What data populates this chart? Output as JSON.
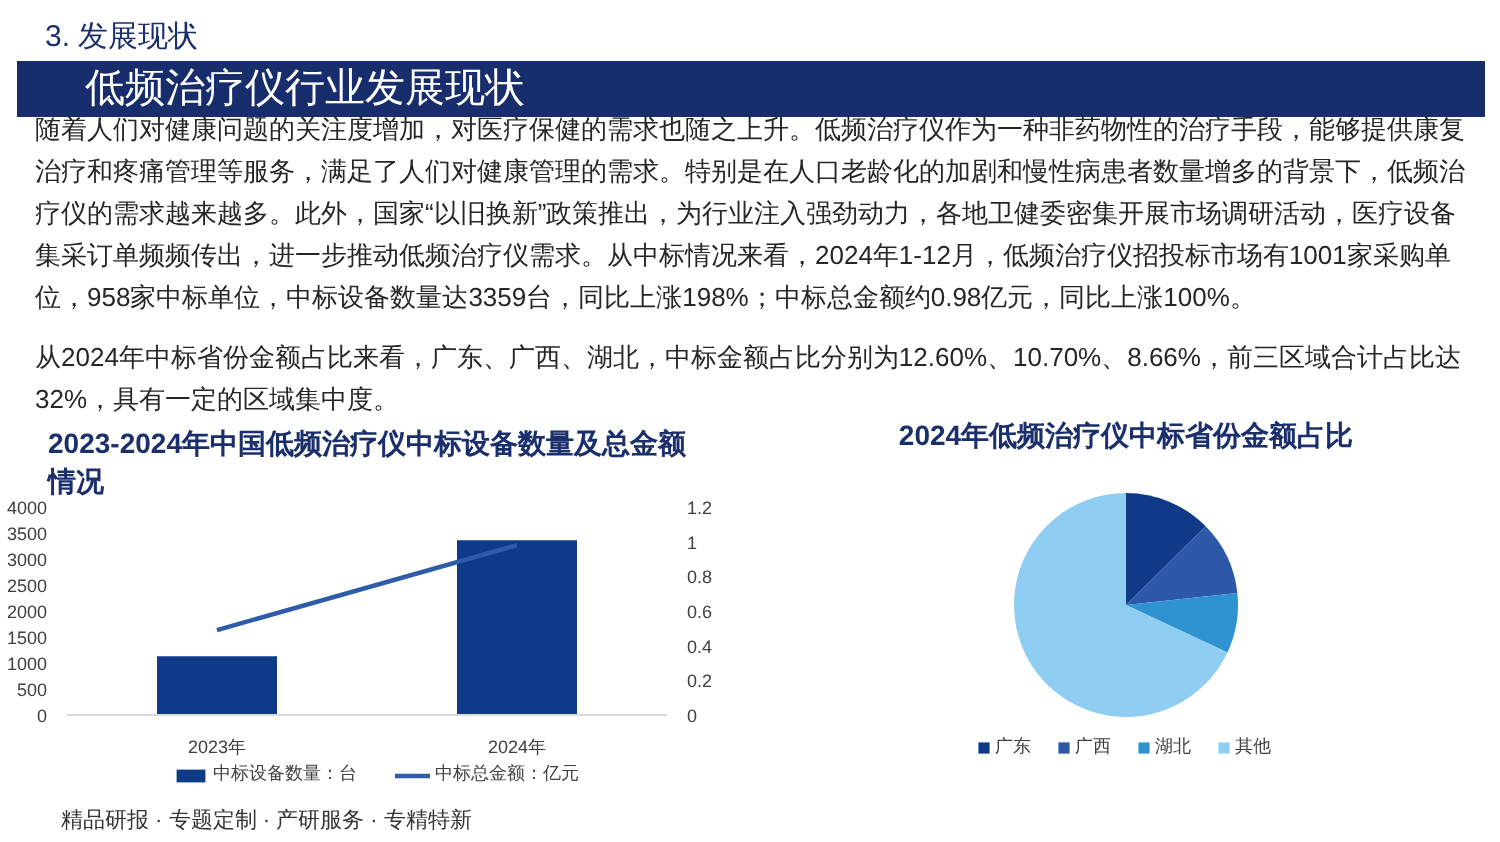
{
  "chart_data": [
    {
      "type": "other",
      "title": "低频治疗仪行业发展现状",
      "annotations": [
        "3. 发展现状",
        "随着人们对健康问题的关注度增加，对医疗保健的需求也随之上升。低频治疗仪作为一种非药物性的治疗手段，能够提供康复治疗和疼痛管理等服务，满足了人们对健康管理的需求。特别是在人口老龄化的加剧和慢性病患者数量增多的背景下，低频治疗仪的需求越来越多。此外，国家“以旧换新”政策推出，为行业注入强劲动力，各地卫健委密集开展市场调研活动，医疗设备集采订单频频传出，进一步推动低频治疗仪需求。从中标情况来看，2024年1-12月，低频治疗仪招投标市场有1001家采购单位，958家中标单位，中标设备数量达3359台，同比上涨198%；中标总金额约0.98亿元，同比上涨100%。",
        "从2024年中标省份金额占比来看，广东、广西、湖北，中标金额占比分别为12.60%、10.70%、8.66%，前三区域合计占比达32%，具有一定的区域集中度。",
        "精品研报 · 专题定制 · 产研服务 · 专精特新"
      ]
    },
    {
      "type": "bar",
      "title": "2023-2024年中国低频治疗仪中标设备数量及总金额情况",
      "categories": [
        "2023年",
        "2024年"
      ],
      "series": [
        {
          "name": "中标设备数量：台",
          "color": "#0e3a87",
          "values": [
            1130,
            3360
          ]
        },
        {
          "name": "中标总金额：亿元",
          "type": "line",
          "axis": "y2",
          "color": "#2f5ca8",
          "values": [
            0.49,
            0.98
          ]
        }
      ],
      "ylim": [
        0,
        4000
      ],
      "yticks": [
        0,
        500,
        1000,
        1500,
        2000,
        2500,
        3000,
        3500,
        4000
      ],
      "y2lim": [
        0,
        1.2
      ],
      "y2ticks": [
        0,
        0.2,
        0.4,
        0.6,
        0.8,
        1,
        1.2
      ],
      "legend": "bottom"
    },
    {
      "type": "pie",
      "title": "2024年低频治疗仪中标省份金额占比",
      "categories": [
        "广东",
        "广西",
        "湖北",
        "其他"
      ],
      "values": [
        12.6,
        10.7,
        8.66,
        68.04
      ],
      "colors": [
        "#0e3a87",
        "#2d58a7",
        "#2f93d1",
        "#90cdf2"
      ],
      "legend": "bottom"
    }
  ]
}
